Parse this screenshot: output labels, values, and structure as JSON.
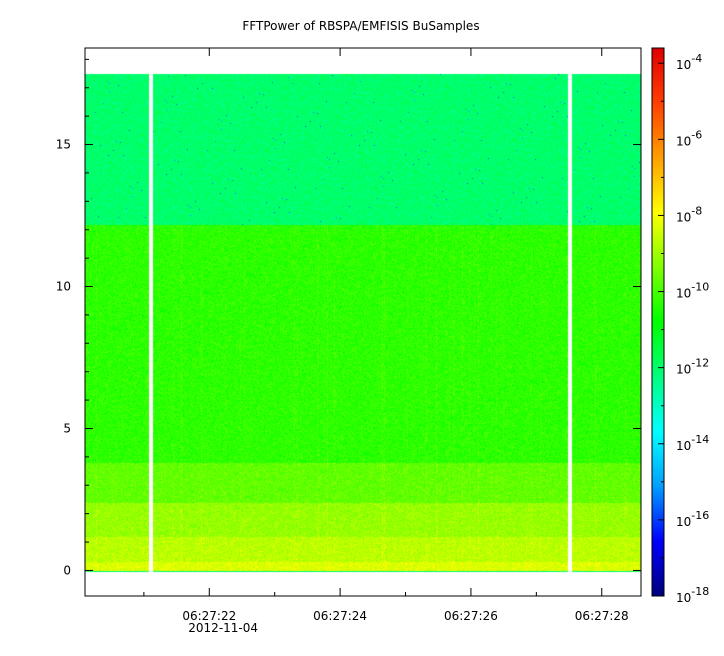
{
  "chart_data": {
    "type": "heatmap",
    "title": "FFTPower of RBSPA/EMFISIS  BuSamples",
    "xlabel": "",
    "ylabel": "",
    "x_ticks": [
      "06:27:22",
      "06:27:24",
      "06:27:26",
      "06:27:28"
    ],
    "x_date_label": "2012-11-04",
    "x_range_seconds": [
      20.1,
      28.6
    ],
    "y_ticks": [
      0,
      5,
      10,
      15
    ],
    "ylim": [
      -0.9,
      18.4
    ],
    "data_y_extent": [
      0,
      17.5
    ],
    "data_gaps_seconds": [
      21.1,
      27.5
    ],
    "bands": [
      {
        "y": [
          0,
          0.3
        ],
        "power_exp": -8.3
      },
      {
        "y": [
          0.3,
          1.2
        ],
        "power_exp": -8.7
      },
      {
        "y": [
          1.2,
          2.4
        ],
        "power_exp": -9.1
      },
      {
        "y": [
          2.4,
          3.8
        ],
        "power_exp": -9.7
      },
      {
        "y": [
          3.8,
          12.2
        ],
        "power_exp": -10.3
      },
      {
        "y": [
          12.2,
          17.5
        ],
        "power_exp": -12.0
      }
    ],
    "colorbar": {
      "scale": "log",
      "range_exp": [
        -18,
        -3.6
      ],
      "tick_labels": [
        "10",
        "10",
        "10",
        "10",
        "10",
        "10",
        "10",
        "10"
      ],
      "tick_exponents": [
        "-4",
        "-6",
        "-8",
        "-10",
        "-12",
        "-14",
        "-16",
        "-18"
      ],
      "tick_values_exp": [
        -4,
        -6,
        -8,
        -10,
        -12,
        -14,
        -16,
        -18
      ],
      "colormap": [
        "#00007f",
        "#0000ff",
        "#00a0ff",
        "#00ffff",
        "#00ff80",
        "#00ff00",
        "#80ff00",
        "#ffff00",
        "#ffa000",
        "#ff4000",
        "#e00000"
      ]
    }
  }
}
